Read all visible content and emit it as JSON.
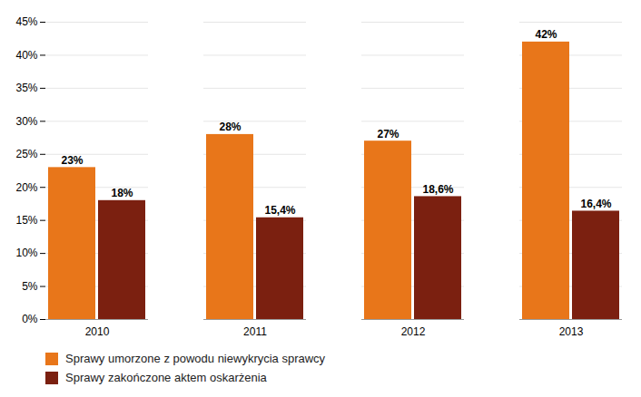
{
  "chart_data": {
    "type": "bar",
    "categories": [
      "2010",
      "2011",
      "2012",
      "2013"
    ],
    "series": [
      {
        "name": "Sprawy umorzone z powodu niewykrycia sprawcy",
        "color": "#E8761A",
        "values": [
          23,
          28,
          27,
          42
        ],
        "value_labels": [
          "23%",
          "28%",
          "27%",
          "42%"
        ]
      },
      {
        "name": "Sprawy zakończone aktem oskarżenia",
        "color": "#7B2010",
        "values": [
          18,
          15.4,
          18.6,
          16.4
        ],
        "value_labels": [
          "18%",
          "15,4%",
          "18,6%",
          "16,4%"
        ]
      }
    ],
    "ylim": [
      0,
      45
    ],
    "yticks": [
      {
        "value": 0,
        "label": "0%"
      },
      {
        "value": 5,
        "label": "5%"
      },
      {
        "value": 10,
        "label": "10%"
      },
      {
        "value": 15,
        "label": "15%"
      },
      {
        "value": 20,
        "label": "20%"
      },
      {
        "value": 25,
        "label": "25%"
      },
      {
        "value": 30,
        "label": "30%"
      },
      {
        "value": 35,
        "label": "35%"
      },
      {
        "value": 40,
        "label": "40%"
      },
      {
        "value": 45,
        "label": "45%"
      }
    ],
    "grid": true,
    "data_labels": true,
    "legend": "lower left"
  }
}
